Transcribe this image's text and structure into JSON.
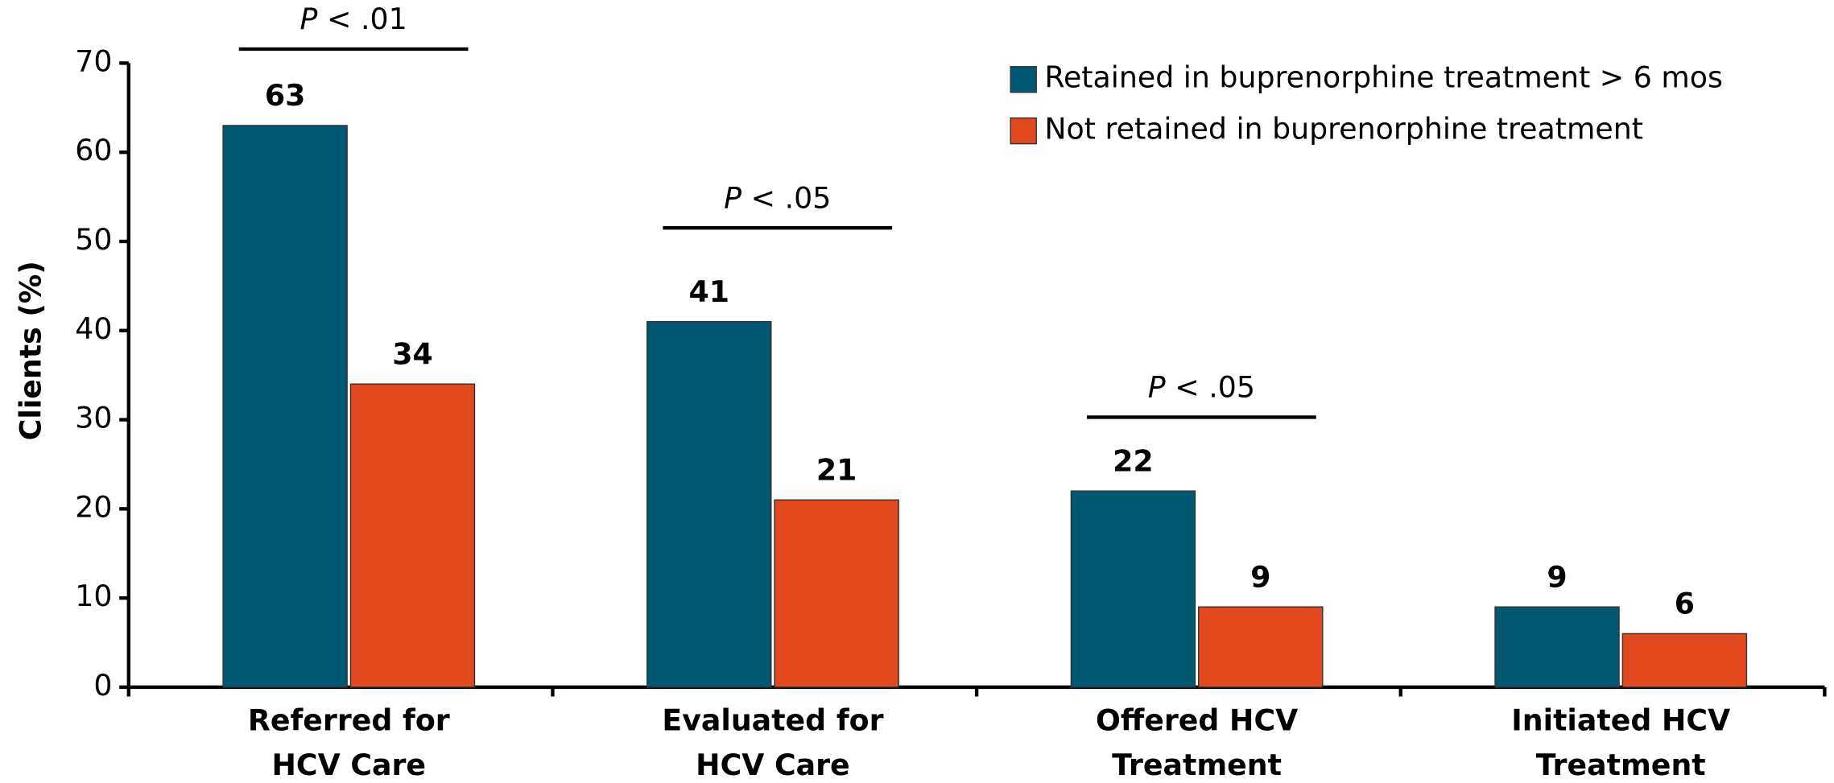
{
  "chart_data": {
    "type": "bar",
    "categories": [
      "Referred for HCV Care",
      "Evaluated for HCV Care",
      "Offered HCV Treatment",
      "Initiated HCV Treatment"
    ],
    "series": [
      {
        "name": "Retained in buprenorphine treatment > 6 mos",
        "color": "#005872",
        "values": [
          63,
          41,
          22,
          9
        ]
      },
      {
        "name": "Not retained in buprenorphine treatment",
        "color": "#e2491f",
        "values": [
          34,
          21,
          9,
          6
        ]
      }
    ],
    "y_label": "Clients (%)",
    "ylim": [
      0,
      70
    ],
    "yticks": [
      0,
      10,
      20,
      30,
      40,
      50,
      60,
      70
    ],
    "legend": "top-right",
    "annotations": [
      {
        "symbol": "P",
        "text": "< .01"
      },
      {
        "symbol": "P",
        "text": "< .05"
      },
      {
        "symbol": "P",
        "text": "< .05"
      }
    ]
  }
}
